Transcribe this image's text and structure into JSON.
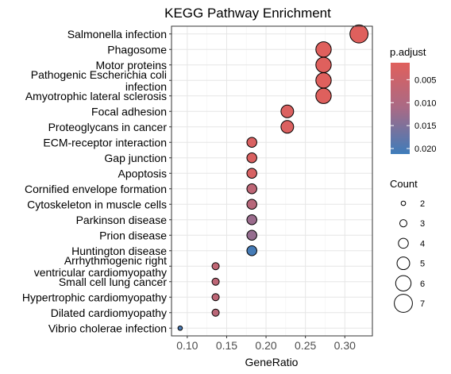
{
  "chart_data": {
    "type": "scatter",
    "title": "KEGG Pathway Enrichment",
    "xlabel": "GeneRatio",
    "ylabel": "",
    "xlim": [
      0.08,
      0.335
    ],
    "x_ticks": [
      "0.10",
      "0.15",
      "0.20",
      "0.25",
      "0.30"
    ],
    "x_tick_values": [
      0.1,
      0.15,
      0.2,
      0.25,
      0.3
    ],
    "grid": true,
    "legend_position": "right",
    "points": [
      {
        "term": "Salmonella infection",
        "x": 0.318,
        "count": 7,
        "p_adjust": 0.0015
      },
      {
        "term": "Phagosome",
        "x": 0.273,
        "count": 6,
        "p_adjust": 0.0015
      },
      {
        "term": "Motor proteins",
        "x": 0.273,
        "count": 6,
        "p_adjust": 0.0015
      },
      {
        "term": "Pathogenic Escherichia coli\ninfection",
        "x": 0.273,
        "count": 6,
        "p_adjust": 0.0015
      },
      {
        "term": "Amyotrophic lateral sclerosis",
        "x": 0.273,
        "count": 6,
        "p_adjust": 0.0016
      },
      {
        "term": "Focal adhesion",
        "x": 0.227,
        "count": 5,
        "p_adjust": 0.0022
      },
      {
        "term": "Proteoglycans in cancer",
        "x": 0.227,
        "count": 5,
        "p_adjust": 0.0022
      },
      {
        "term": "ECM-receptor interaction",
        "x": 0.182,
        "count": 4,
        "p_adjust": 0.0025
      },
      {
        "term": "Gap junction",
        "x": 0.182,
        "count": 4,
        "p_adjust": 0.0026
      },
      {
        "term": "Apoptosis",
        "x": 0.182,
        "count": 4,
        "p_adjust": 0.0029
      },
      {
        "term": "Cornified envelope formation",
        "x": 0.182,
        "count": 4,
        "p_adjust": 0.0075
      },
      {
        "term": "Cytoskeleton in muscle cells",
        "x": 0.182,
        "count": 4,
        "p_adjust": 0.0085
      },
      {
        "term": "Parkinson disease",
        "x": 0.182,
        "count": 4,
        "p_adjust": 0.0125
      },
      {
        "term": "Prion disease",
        "x": 0.182,
        "count": 4,
        "p_adjust": 0.013
      },
      {
        "term": "Huntington disease",
        "x": 0.182,
        "count": 4,
        "p_adjust": 0.0205
      },
      {
        "term": "Arrhythmogenic right\nventricular cardiomyopathy",
        "x": 0.136,
        "count": 3,
        "p_adjust": 0.007
      },
      {
        "term": "Small cell lung cancer",
        "x": 0.136,
        "count": 3,
        "p_adjust": 0.0075
      },
      {
        "term": "Hypertrophic cardiomyopathy",
        "x": 0.136,
        "count": 3,
        "p_adjust": 0.0075
      },
      {
        "term": "Dilated cardiomyopathy",
        "x": 0.136,
        "count": 3,
        "p_adjust": 0.008
      },
      {
        "term": "Vibrio cholerae infection",
        "x": 0.091,
        "count": 2,
        "p_adjust": 0.02
      }
    ],
    "color_legend": {
      "title": "p.adjust",
      "ticks": [
        "0.005",
        "0.010",
        "0.015",
        "0.020"
      ],
      "tick_values": [
        0.005,
        0.01,
        0.015,
        0.02
      ],
      "range": [
        0.0013,
        0.0212
      ],
      "low_color": "#e0605c",
      "high_color": "#3e7cba"
    },
    "size_legend": {
      "title": "Count",
      "values": [
        2,
        3,
        4,
        5,
        6,
        7
      ],
      "labels": [
        "2",
        "3",
        "4",
        "5",
        "6",
        "7"
      ]
    }
  }
}
